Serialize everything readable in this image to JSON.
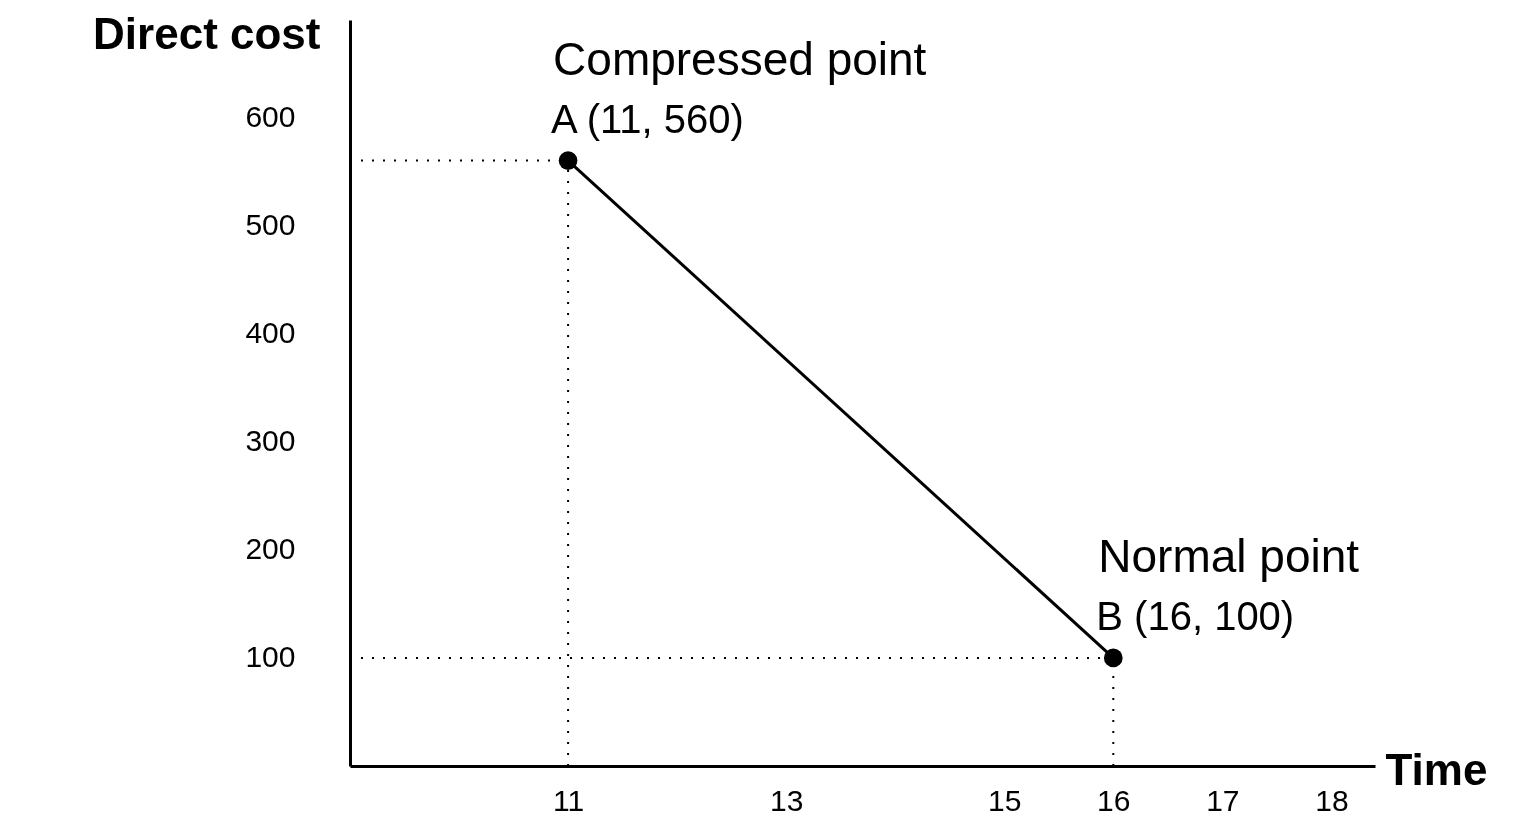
{
  "chart_data": {
    "type": "line",
    "xlabel": "Time",
    "ylabel": "Direct cost",
    "x": [
      11,
      16
    ],
    "series": [
      {
        "color": "#000000",
        "values": [
          560,
          100
        ]
      }
    ],
    "marker": "circle",
    "line_style": "solid",
    "grid": false,
    "xlim": [
      9,
      18.4
    ],
    "xticks": [
      11,
      13,
      15,
      16,
      17,
      18
    ],
    "ylim": [
      0,
      690
    ],
    "yticks": [
      100,
      200,
      300,
      400,
      500,
      600
    ],
    "ref_lines": [
      {
        "axis": "x",
        "value": 11,
        "line_style": "dotted",
        "color": "#000000"
      },
      {
        "axis": "x",
        "value": 16,
        "line_style": "dotted",
        "color": "#000000"
      },
      {
        "axis": "y",
        "value": 560,
        "line_style": "dotted",
        "color": "#000000"
      },
      {
        "axis": "y",
        "value": 100,
        "line_style": "dotted",
        "color": "#000000"
      }
    ],
    "annotations": [
      "Compressed point",
      "A (11, 560)",
      "Normal point",
      "B (16, 100)"
    ]
  }
}
